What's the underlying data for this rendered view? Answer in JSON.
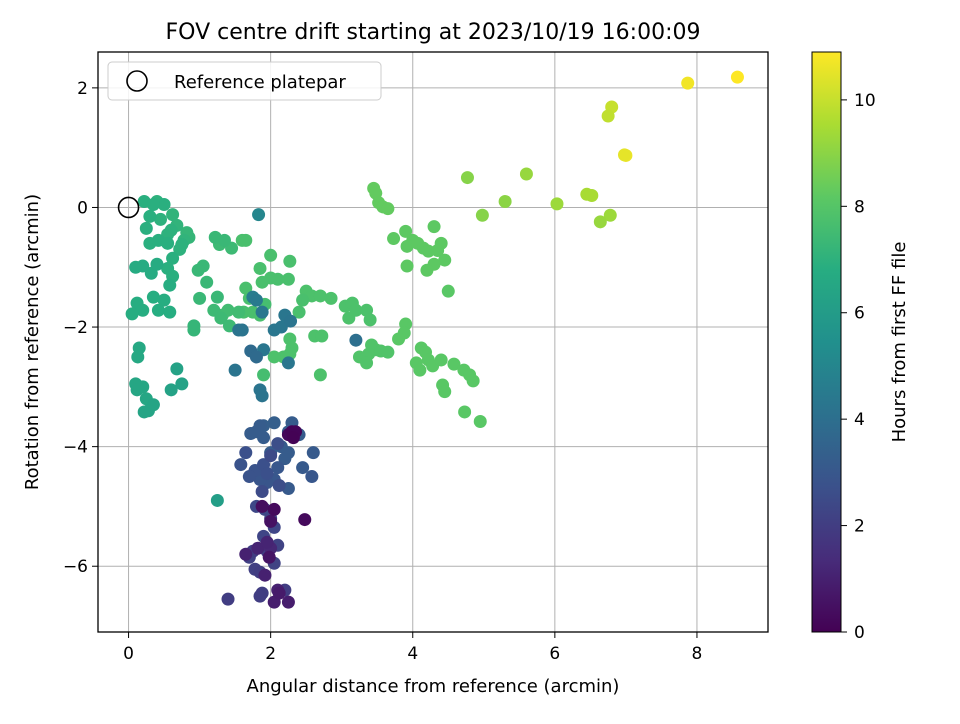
{
  "chart_data": {
    "type": "scatter",
    "title": "FOV centre drift starting at 2023/10/19 16:00:09",
    "xlabel": "Angular distance from reference (arcmin)",
    "ylabel": "Rotation from reference (arcmin)",
    "xlim": [
      -0.43,
      9.0
    ],
    "ylim": [
      -7.1,
      2.6
    ],
    "xticks": [
      0,
      2,
      4,
      6,
      8
    ],
    "yticks": [
      -6,
      -4,
      -2,
      0,
      2
    ],
    "grid": true,
    "legend": {
      "position": "top-left",
      "entries": [
        "Reference platepar"
      ]
    },
    "reference_point": {
      "x": 0,
      "y": 0,
      "label": "Reference platepar"
    },
    "colorbar": {
      "label": "Hours from first FF file",
      "range": [
        0,
        10.9
      ],
      "ticks": [
        0,
        2,
        4,
        6,
        8,
        10
      ],
      "colormap": "viridis"
    },
    "points": [
      [
        8.57,
        2.18,
        10.9
      ],
      [
        7.87,
        2.08,
        10.7
      ],
      [
        6.8,
        1.68,
        10.0
      ],
      [
        6.75,
        1.53,
        9.9
      ],
      [
        7.0,
        0.87,
        10.6
      ],
      [
        6.98,
        0.88,
        10.5
      ],
      [
        5.6,
        0.56,
        9.2
      ],
      [
        4.77,
        0.5,
        8.9
      ],
      [
        6.45,
        0.22,
        9.5
      ],
      [
        6.52,
        0.2,
        9.5
      ],
      [
        6.03,
        0.06,
        9.3
      ],
      [
        5.3,
        0.1,
        9.0
      ],
      [
        4.98,
        -0.13,
        8.9
      ],
      [
        6.78,
        -0.13,
        9.3
      ],
      [
        6.64,
        -0.24,
        9.2
      ],
      [
        3.45,
        0.32,
        8.3
      ],
      [
        3.48,
        0.24,
        8.3
      ],
      [
        3.52,
        0.08,
        8.3
      ],
      [
        3.58,
        0.01,
        8.3
      ],
      [
        3.65,
        -0.02,
        8.3
      ],
      [
        3.73,
        -0.52,
        8.2
      ],
      [
        3.9,
        -0.4,
        8.2
      ],
      [
        4.0,
        -0.55,
        8.2
      ],
      [
        3.92,
        -0.65,
        8.2
      ],
      [
        4.07,
        -0.6,
        8.2
      ],
      [
        4.15,
        -0.68,
        8.2
      ],
      [
        4.22,
        -0.73,
        8.2
      ],
      [
        4.3,
        -0.32,
        8.2
      ],
      [
        4.4,
        -0.6,
        8.2
      ],
      [
        4.35,
        -0.72,
        8.2
      ],
      [
        4.45,
        -0.88,
        8.2
      ],
      [
        4.3,
        -0.95,
        8.2
      ],
      [
        4.2,
        -1.05,
        8.2
      ],
      [
        3.92,
        -0.98,
        8.2
      ],
      [
        4.5,
        -1.4,
        8.1
      ],
      [
        3.9,
        -1.95,
        8.1
      ],
      [
        3.88,
        -2.1,
        8.1
      ],
      [
        3.8,
        -2.2,
        8.1
      ],
      [
        4.12,
        -2.35,
        8.1
      ],
      [
        4.18,
        -2.42,
        8.1
      ],
      [
        4.05,
        -2.6,
        8.1
      ],
      [
        4.1,
        -2.72,
        8.1
      ],
      [
        4.22,
        -2.55,
        8.1
      ],
      [
        4.28,
        -2.65,
        8.1
      ],
      [
        4.4,
        -2.55,
        8.1
      ],
      [
        4.58,
        -2.62,
        8.1
      ],
      [
        4.72,
        -2.72,
        8.1
      ],
      [
        4.8,
        -2.8,
        8.1
      ],
      [
        4.85,
        -2.9,
        8.1
      ],
      [
        4.42,
        -2.97,
        8.1
      ],
      [
        4.45,
        -3.08,
        8.1
      ],
      [
        4.73,
        -3.42,
        8.1
      ],
      [
        4.95,
        -3.58,
        8.1
      ],
      [
        3.42,
        -2.3,
        7.9
      ],
      [
        3.48,
        -2.38,
        7.9
      ],
      [
        3.38,
        -2.45,
        7.9
      ],
      [
        3.55,
        -2.4,
        7.9
      ],
      [
        3.65,
        -2.42,
        7.9
      ],
      [
        3.25,
        -2.5,
        7.9
      ],
      [
        3.35,
        -2.6,
        7.9
      ],
      [
        2.5,
        -1.4,
        7.8
      ],
      [
        2.58,
        -1.48,
        7.8
      ],
      [
        2.7,
        -1.48,
        7.8
      ],
      [
        2.85,
        -1.52,
        7.8
      ],
      [
        3.05,
        -1.65,
        7.8
      ],
      [
        3.15,
        -1.6,
        7.8
      ],
      [
        3.2,
        -1.72,
        7.8
      ],
      [
        3.35,
        -1.72,
        7.8
      ],
      [
        3.4,
        -1.88,
        7.8
      ],
      [
        3.1,
        -1.85,
        7.8
      ],
      [
        2.62,
        -2.15,
        7.8
      ],
      [
        2.72,
        -2.15,
        7.8
      ],
      [
        2.27,
        -2.2,
        7.8
      ],
      [
        2.3,
        -2.35,
        7.8
      ],
      [
        2.27,
        -2.45,
        7.8
      ],
      [
        2.18,
        -2.5,
        7.8
      ],
      [
        2.05,
        -2.5,
        7.8
      ],
      [
        2.7,
        -2.8,
        7.8
      ],
      [
        2.27,
        -0.9,
        7.7
      ],
      [
        2.25,
        -1.2,
        7.7
      ],
      [
        2.1,
        -1.2,
        7.7
      ],
      [
        2.0,
        -1.18,
        7.7
      ],
      [
        1.85,
        -1.02,
        7.7
      ],
      [
        1.88,
        -1.25,
        7.7
      ],
      [
        2.0,
        -0.8,
        7.7
      ],
      [
        1.65,
        -0.55,
        7.7
      ],
      [
        1.6,
        -0.55,
        7.7
      ],
      [
        1.65,
        -1.35,
        7.7
      ],
      [
        1.7,
        -1.52,
        7.7
      ],
      [
        1.62,
        -1.75,
        7.7
      ],
      [
        1.75,
        -1.75,
        7.7
      ],
      [
        1.85,
        -1.8,
        7.7
      ],
      [
        2.4,
        -1.75,
        7.7
      ],
      [
        2.45,
        -1.55,
        7.7
      ],
      [
        1.9,
        -2.8,
        7.6
      ],
      [
        1.92,
        -1.62,
        7.6
      ],
      [
        1.55,
        -1.75,
        7.5
      ],
      [
        1.4,
        -1.72,
        7.5
      ],
      [
        1.32,
        -1.8,
        7.5
      ],
      [
        1.2,
        -1.72,
        7.4
      ],
      [
        1.3,
        -1.85,
        7.4
      ],
      [
        1.42,
        -1.98,
        7.4
      ],
      [
        1.45,
        -0.68,
        7.4
      ],
      [
        1.28,
        -0.62,
        7.4
      ],
      [
        1.22,
        -0.5,
        7.3
      ],
      [
        1.35,
        -0.55,
        7.3
      ],
      [
        1.1,
        -1.25,
        7.3
      ],
      [
        1.05,
        -0.98,
        7.3
      ],
      [
        0.98,
        -1.05,
        7.3
      ],
      [
        1.0,
        -1.52,
        7.3
      ],
      [
        1.25,
        -1.5,
        7.3
      ],
      [
        0.92,
        -1.98,
        7.2
      ],
      [
        0.92,
        -2.05,
        7.2
      ],
      [
        0.85,
        -0.5,
        7.2
      ],
      [
        0.82,
        -0.42,
        7.2
      ],
      [
        0.78,
        -0.55,
        7.1
      ],
      [
        0.68,
        -0.3,
        7.1
      ],
      [
        0.62,
        -0.12,
        7.1
      ],
      [
        0.75,
        -0.62,
        7.0
      ],
      [
        0.72,
        -0.7,
        7.0
      ],
      [
        0.6,
        -0.38,
        7.0
      ],
      [
        0.55,
        -0.45,
        7.0
      ],
      [
        0.4,
        0.1,
        7.0
      ],
      [
        0.45,
        -0.2,
        7.0
      ],
      [
        0.5,
        0.05,
        6.9
      ],
      [
        0.22,
        0.1,
        6.9
      ],
      [
        0.35,
        0.05,
        6.9
      ],
      [
        0.3,
        -0.15,
        6.9
      ],
      [
        0.25,
        -0.35,
        6.9
      ],
      [
        0.3,
        -0.6,
        6.9
      ],
      [
        0.42,
        -0.55,
        6.9
      ],
      [
        0.55,
        -0.6,
        6.9
      ],
      [
        0.62,
        -0.85,
        6.9
      ],
      [
        0.55,
        -1.02,
        6.9
      ],
      [
        0.62,
        -1.15,
        6.9
      ],
      [
        0.58,
        -1.3,
        6.8
      ],
      [
        0.5,
        -1.55,
        6.8
      ],
      [
        0.35,
        -1.5,
        6.8
      ],
      [
        0.42,
        -1.72,
        6.8
      ],
      [
        0.58,
        -1.75,
        6.8
      ],
      [
        0.12,
        -1.6,
        6.8
      ],
      [
        0.2,
        -1.72,
        6.8
      ],
      [
        0.05,
        -1.78,
        6.8
      ],
      [
        0.32,
        -1.1,
        6.7
      ],
      [
        0.2,
        -0.98,
        6.7
      ],
      [
        0.1,
        -1.0,
        6.7
      ],
      [
        0.4,
        -0.95,
        6.7
      ],
      [
        0.15,
        -2.35,
        6.6
      ],
      [
        0.13,
        -2.5,
        6.6
      ],
      [
        0.1,
        -2.95,
        6.5
      ],
      [
        0.12,
        -3.05,
        6.5
      ],
      [
        0.2,
        -3.0,
        6.5
      ],
      [
        0.25,
        -3.2,
        6.5
      ],
      [
        0.35,
        -3.3,
        6.4
      ],
      [
        0.28,
        -3.4,
        6.4
      ],
      [
        0.22,
        -3.42,
        6.4
      ],
      [
        0.6,
        -3.05,
        6.3
      ],
      [
        0.75,
        -2.95,
        6.3
      ],
      [
        0.68,
        -2.7,
        6.3
      ],
      [
        1.25,
        -4.9,
        6.1
      ],
      [
        1.83,
        -0.12,
        5.0
      ],
      [
        1.75,
        -1.5,
        4.6
      ],
      [
        1.8,
        -1.55,
        4.5
      ],
      [
        1.88,
        -1.75,
        4.4
      ],
      [
        2.05,
        -2.05,
        4.3
      ],
      [
        2.15,
        -2.0,
        4.3
      ],
      [
        2.2,
        -1.8,
        4.3
      ],
      [
        2.28,
        -1.9,
        4.2
      ],
      [
        1.55,
        -2.05,
        4.2
      ],
      [
        1.6,
        -2.05,
        4.2
      ],
      [
        1.5,
        -2.72,
        4.2
      ],
      [
        1.85,
        -3.05,
        4.2
      ],
      [
        1.88,
        -3.15,
        4.2
      ],
      [
        3.2,
        -2.22,
        4.0
      ],
      [
        2.25,
        -2.6,
        4.3
      ],
      [
        1.9,
        -2.38,
        4.3
      ],
      [
        1.72,
        -2.4,
        3.8
      ],
      [
        1.8,
        -2.5,
        3.8
      ],
      [
        2.05,
        -3.6,
        3.3
      ],
      [
        1.9,
        -3.65,
        3.3
      ],
      [
        1.85,
        -3.65,
        3.2
      ],
      [
        2.3,
        -3.6,
        3.2
      ],
      [
        2.4,
        -3.8,
        3.2
      ],
      [
        2.25,
        -3.75,
        3.2
      ],
      [
        2.15,
        -4.0,
        3.2
      ],
      [
        2.0,
        -4.1,
        3.2
      ],
      [
        1.9,
        -3.85,
        3.2
      ],
      [
        1.8,
        -3.75,
        3.2
      ],
      [
        1.72,
        -3.78,
        3.2
      ],
      [
        2.25,
        -4.1,
        3.2
      ],
      [
        2.2,
        -4.2,
        3.2
      ],
      [
        2.25,
        -4.7,
        3.1
      ],
      [
        2.45,
        -4.35,
        3.1
      ],
      [
        2.6,
        -4.1,
        3.1
      ],
      [
        2.58,
        -4.5,
        3.0
      ],
      [
        2.1,
        -4.35,
        3.0
      ],
      [
        2.05,
        -4.55,
        3.0
      ],
      [
        1.95,
        -4.6,
        2.9
      ],
      [
        1.85,
        -4.55,
        2.9
      ],
      [
        1.78,
        -4.4,
        2.8
      ],
      [
        1.7,
        -4.5,
        2.8
      ],
      [
        1.58,
        -4.3,
        2.8
      ],
      [
        1.65,
        -4.1,
        2.7
      ],
      [
        1.9,
        -4.3,
        2.7
      ],
      [
        1.95,
        -4.45,
        2.7
      ],
      [
        2.12,
        -4.65,
        2.6
      ],
      [
        2.1,
        -3.95,
        2.6
      ],
      [
        2.0,
        -4.15,
        2.5
      ],
      [
        1.88,
        -4.75,
        2.5
      ],
      [
        1.92,
        -5.05,
        2.4
      ],
      [
        1.8,
        -5.0,
        2.4
      ],
      [
        2.05,
        -5.35,
        2.3
      ],
      [
        2.0,
        -5.2,
        2.3
      ],
      [
        1.9,
        -5.5,
        2.3
      ],
      [
        2.1,
        -5.65,
        2.2
      ],
      [
        2.05,
        -5.95,
        2.2
      ],
      [
        1.7,
        -5.85,
        2.1
      ],
      [
        1.78,
        -6.05,
        2.1
      ],
      [
        1.85,
        -6.1,
        2.0
      ],
      [
        2.2,
        -6.4,
        2.0
      ],
      [
        1.88,
        -6.45,
        2.0
      ],
      [
        1.85,
        -6.5,
        2.0
      ],
      [
        1.4,
        -6.55,
        2.0
      ],
      [
        1.75,
        -5.75,
        2.0
      ],
      [
        1.95,
        -5.75,
        2.0
      ],
      [
        2.0,
        -5.7,
        1.2
      ],
      [
        1.82,
        -5.7,
        1.1
      ],
      [
        1.95,
        -5.6,
        1.1
      ],
      [
        1.65,
        -5.8,
        1.0
      ],
      [
        1.92,
        -6.15,
        1.0
      ],
      [
        2.1,
        -6.4,
        1.0
      ],
      [
        2.05,
        -6.6,
        0.9
      ],
      [
        2.25,
        -6.6,
        0.9
      ],
      [
        2.12,
        -6.45,
        0.8
      ],
      [
        1.98,
        -5.85,
        0.6
      ],
      [
        2.0,
        -5.25,
        0.5
      ],
      [
        1.88,
        -5.0,
        0.4
      ],
      [
        2.05,
        -5.05,
        0.3
      ],
      [
        2.48,
        -5.22,
        0.3
      ],
      [
        2.25,
        -3.8,
        0.2
      ],
      [
        2.3,
        -3.75,
        0.1
      ],
      [
        2.35,
        -3.75,
        0.1
      ],
      [
        2.32,
        -3.85,
        0.05
      ]
    ]
  }
}
